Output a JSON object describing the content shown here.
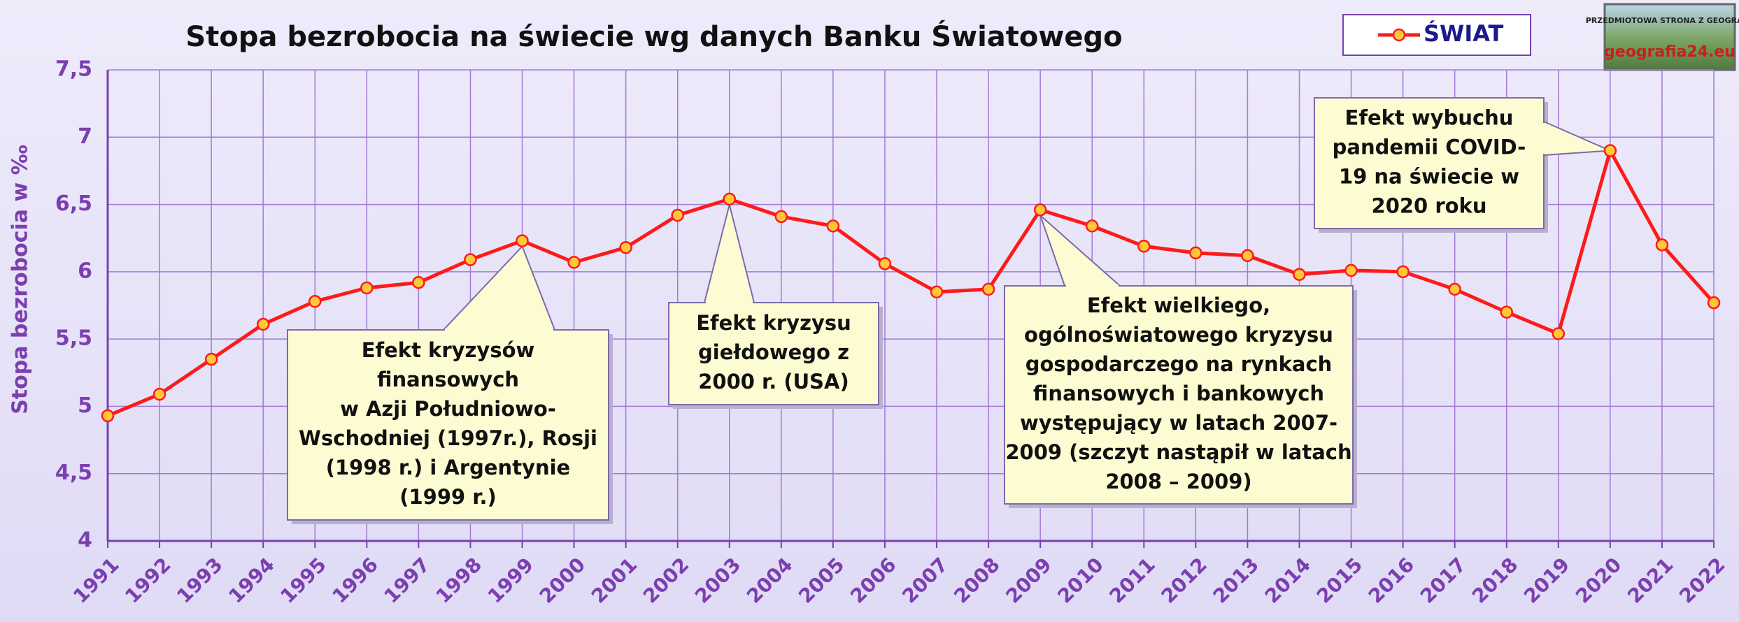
{
  "chart_data": {
    "type": "line",
    "title": "Stopa bezrobocia na świecie wg danych Banku Światowego",
    "y_label": "Stopa bezrobocia w ‰",
    "categories": [
      "1991",
      "1992",
      "1993",
      "1994",
      "1995",
      "1996",
      "1997",
      "1998",
      "1999",
      "2000",
      "2001",
      "2002",
      "2003",
      "2004",
      "2005",
      "2006",
      "2007",
      "2008",
      "2009",
      "2010",
      "2011",
      "2012",
      "2013",
      "2014",
      "2015",
      "2016",
      "2017",
      "2018",
      "2019",
      "2020",
      "2021",
      "2022"
    ],
    "series": [
      {
        "name": "ŚWIAT",
        "color": "#ff1a1a",
        "marker_color": "#ffc83a",
        "values": [
          4.93,
          5.09,
          5.35,
          5.61,
          5.78,
          5.88,
          5.92,
          6.09,
          6.23,
          6.07,
          6.18,
          6.42,
          6.54,
          6.41,
          6.34,
          6.06,
          5.85,
          5.87,
          6.46,
          6.34,
          6.19,
          6.14,
          6.12,
          5.98,
          6.01,
          6.0,
          5.87,
          5.7,
          5.54,
          6.9,
          6.2,
          5.77
        ]
      }
    ],
    "ylim": [
      4,
      7.5
    ],
    "yticks": [
      4,
      {
        "value": 4.5,
        "label": "4,5"
      },
      5,
      {
        "value": 5.5,
        "label": "5,5"
      },
      6,
      {
        "value": 6.5,
        "label": "6,5"
      },
      7,
      {
        "value": 7.5,
        "label": "7,5"
      }
    ],
    "grid": true,
    "legend": "top-right",
    "annotations": [
      {
        "lines": [
          "Efekt kryzysów",
          "finansowych",
          "w Azji Południowo-",
          "Wschodniej (1997r.), Rosji",
          "(1998 r.) i Argentynie",
          "(1999 r.)"
        ]
      },
      {
        "lines": [
          "Efekt kryzysu",
          "giełdowego z",
          "2000 r. (USA)"
        ]
      },
      {
        "lines": [
          "Efekt wielkiego,",
          "ogólnoświatowego kryzysu",
          "gospodarczego na rynkach",
          "finansowych i bankowych",
          "występujący w latach 2007-",
          "2009 (szczyt nastąpił w latach",
          "2008 – 2009)"
        ]
      },
      {
        "lines": [
          "Efekt wybuchu",
          "pandemii COVID-",
          "19 na świecie w",
          "2020 roku"
        ]
      }
    ],
    "logo": {
      "top": "PRZEDMIOTOWA STRONA Z GEOGRAFII",
      "name": "geografia24.eu"
    }
  }
}
